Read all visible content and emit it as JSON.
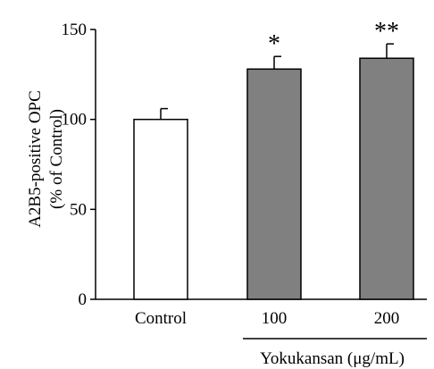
{
  "chart_data": {
    "type": "bar",
    "categories": [
      "Control",
      "100",
      "200"
    ],
    "values": [
      100,
      128,
      134
    ],
    "errors": [
      6,
      7,
      8
    ],
    "significance": [
      "",
      "*",
      "**"
    ],
    "bar_colors": [
      "#ffffff",
      "#808080",
      "#808080"
    ],
    "ylabel_line1": "A2B5-positive OPC",
    "ylabel_line2": "(% of Control)",
    "xlabel": "Yokukansan (μg/mL)",
    "ylim": [
      0,
      150
    ],
    "yticks": [
      0,
      50,
      100,
      150
    ],
    "grid": false,
    "legend": "none"
  }
}
